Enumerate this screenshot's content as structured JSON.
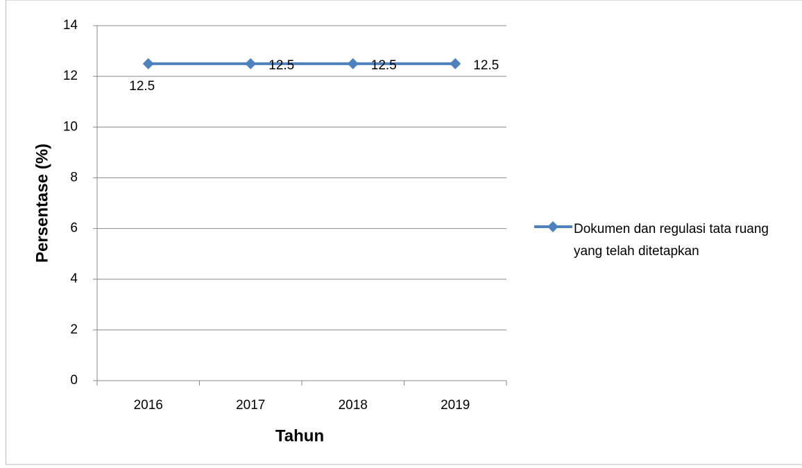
{
  "chart_data": {
    "type": "line",
    "categories": [
      "2016",
      "2017",
      "2018",
      "2019"
    ],
    "series": [
      {
        "name": "Dokumen dan regulasi tata ruang yang telah ditetapkan",
        "color": "#4f81bd",
        "values": [
          12.5,
          12.5,
          12.5,
          12.5
        ]
      }
    ],
    "ylim": [
      0,
      14
    ],
    "yticks": [
      0,
      2,
      4,
      6,
      8,
      10,
      12,
      14
    ],
    "grid": true,
    "legend": "right",
    "xlabel": "Tahun",
    "ylabel": "Persentase (%)",
    "data_labels": true
  }
}
